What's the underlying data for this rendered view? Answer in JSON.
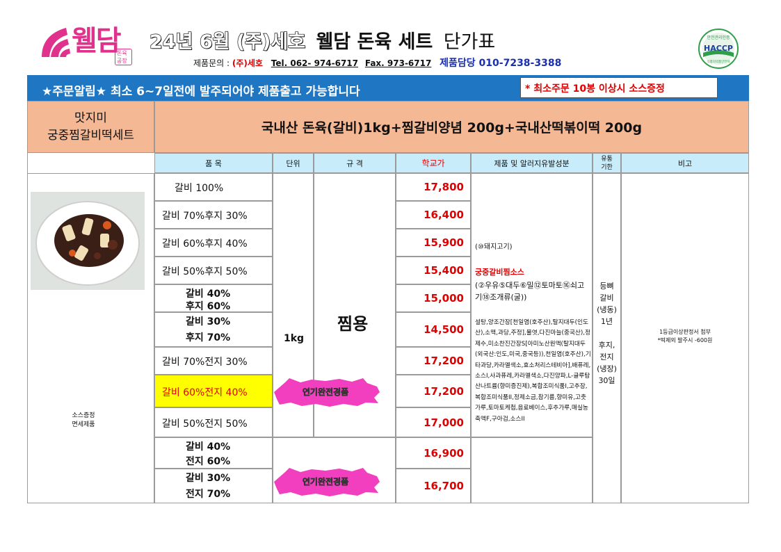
{
  "header": {
    "brand": "웰담",
    "brand_sub": "돈육공장",
    "title_lead": "24년 6월 (주)세호",
    "title_main": "웰담 돈육 세트",
    "title_tail": "단가표",
    "contact_label": "제품문의 :",
    "company": "(주)세호",
    "tel": "Tel. 062- 974-6717",
    "fax": "Fax. 973-6717",
    "manager": "제품담당  010-7238-3388",
    "haccp_top": "안전관리인증",
    "haccp_main": "HACCP",
    "haccp_bottom": "식품의약품안전처"
  },
  "notice": {
    "text": "★주문알림★ 최소 6~7일전에 발주되어야 제품출고 가능합니다",
    "box": "* 최소주문 10봉 이상시 소스증정"
  },
  "product": {
    "name_line1": "맛지미",
    "name_line2": "궁중찜갈비떡세트",
    "description": "국내산 돈육(갈비)1kg+찜갈비양념 200g+국내산떡볶이떡 200g",
    "image_note_line1": "소스증정",
    "image_note_line2": "면세제품"
  },
  "columns": {
    "item": "품   목",
    "unit": "단위",
    "spec": "규   격",
    "price": "학교가",
    "allergen": "제품 및 알러지유발성분",
    "shelf_line1": "유통",
    "shelf_line2": "기한",
    "note": "비고"
  },
  "rows": [
    {
      "l1": "갈비 100%",
      "l2": "",
      "price": "17,800",
      "highlight": false
    },
    {
      "l1": "갈비 70%후지 30%",
      "l2": "",
      "price": "16,400",
      "highlight": false
    },
    {
      "l1": "갈비 60%후지 40%",
      "l2": "",
      "price": "15,900",
      "highlight": false
    },
    {
      "l1": "갈비 50%후지 50%",
      "l2": "",
      "price": "15,400",
      "highlight": false
    },
    {
      "l1": "갈비 40%",
      "l2": "후지 60%",
      "price": "15,000",
      "highlight": false
    },
    {
      "l1": "갈비 30%",
      "l2": "후지 70%",
      "price": "14,500",
      "highlight": false
    },
    {
      "l1": "갈비 70%전지 30%",
      "l2": "",
      "price": "17,200",
      "highlight": false
    },
    {
      "l1": "갈비 60%전지 40%",
      "l2": "",
      "price": "17,200",
      "highlight": true
    },
    {
      "l1": "갈비 50%전지 50%",
      "l2": "",
      "price": "17,000",
      "highlight": false
    },
    {
      "l1": "갈비 40%",
      "l2": "전지 60%",
      "price": "16,900",
      "highlight": false
    },
    {
      "l1": "갈비 30%",
      "l2": "전지 70%",
      "price": "16,700",
      "highlight": false
    }
  ],
  "unit_value": "1kg",
  "spec_value": "찜용",
  "allergen": {
    "meat": "(⑩돼지고기)",
    "sauce_title": "궁중갈비찜소스",
    "sauce_allergens": "(②우유⑤대두⑥밀⑫토마토⑯쇠고기⑱조개류(굴))",
    "ingredients": "설탕,양조간장[천일염(호주산),탈지대두(인도산),소맥,과당,주정],물엿,다진마늘(중국산),정제수,미소찬진간장S[아미노산원액(탈지대두(외국산:인도,미국,중국등)),천일염(호주산),기타과당,카라멜색소,효소처리스테비아],배퓨레,소스I,사과퓨레,카라멜색소,다진양파,L-글루탐산나트륨(향미증진제),복합조미식품I,고추장,복합조미식품II,정제소금,참기름,향미유,고춧가루,토마토케첩,음료베이스,후추가루,매실농축액F,구아검,소스II"
  },
  "shelf_life": {
    "l1": "등뼈",
    "l2": "갈비",
    "l3": "(냉동)",
    "l4": "1년",
    "l5": "후지,",
    "l6": "전지",
    "l7": "(냉장)",
    "l8": "30일"
  },
  "note": {
    "l1": "1등급이상판정서 첨부",
    "l2": "*떡제외 발주시 -600원"
  },
  "badges": {
    "label": "연기완전경품"
  },
  "colors": {
    "notice_bar": "#1f77c4",
    "product_band": "#f5b894",
    "header_row": "#c9ecfa",
    "price_red": "#e00000",
    "highlight_yellow": "#ffff00",
    "badge_pink": "#f23fbf",
    "brand_pink": "#e0328c"
  }
}
